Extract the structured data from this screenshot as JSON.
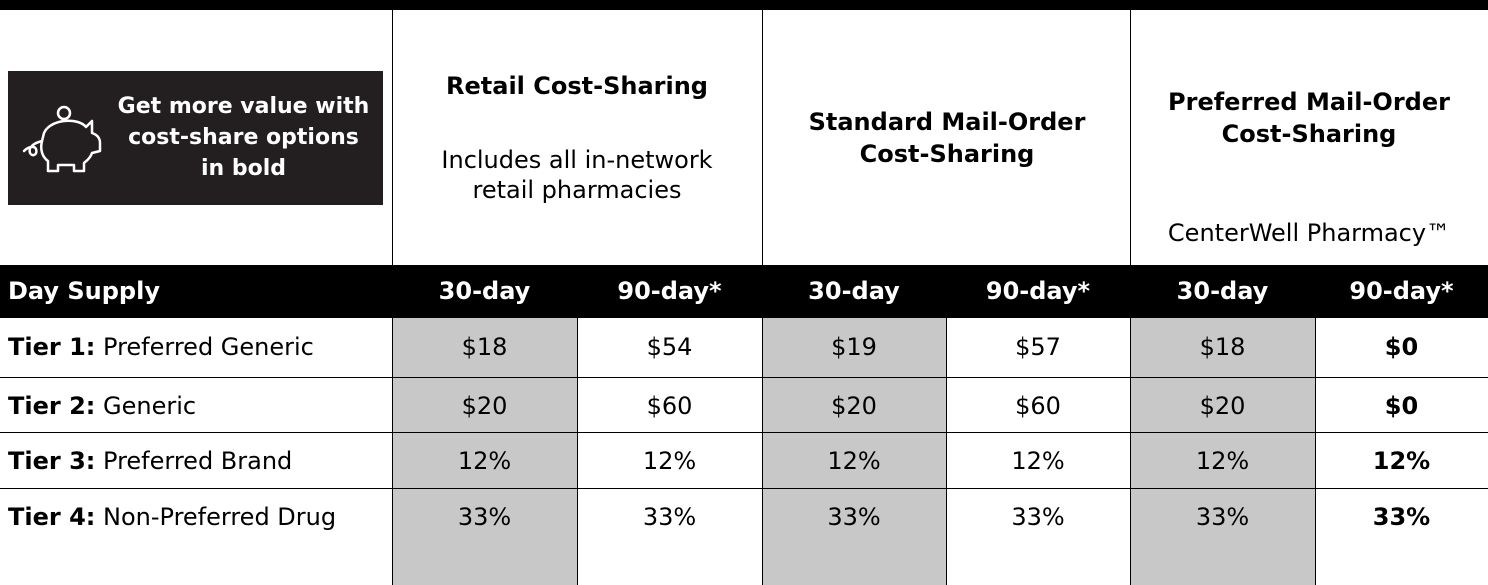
{
  "badge": {
    "text": "Get more value with cost-share options in bold"
  },
  "columns": [
    {
      "title": "Retail Cost-Sharing",
      "subtitle": "Includes all in-network retail pharmacies"
    },
    {
      "title": "Standard Mail-Order Cost-Sharing"
    },
    {
      "title": "Preferred Mail-Order Cost-Sharing",
      "subtitle": "CenterWell Pharmacy™"
    }
  ],
  "table": {
    "header": [
      "Day Supply",
      "30-day",
      "90-day*",
      "30-day",
      "90-day*",
      "30-day",
      "90-day*"
    ],
    "rows": [
      {
        "tier": "Tier 1:",
        "name": "Preferred Generic",
        "cells": [
          "$18",
          "$54",
          "$19",
          "$57",
          "$18",
          "$0"
        ]
      },
      {
        "tier": "Tier 2:",
        "name": "Generic",
        "cells": [
          "$20",
          "$60",
          "$20",
          "$60",
          "$20",
          "$0"
        ]
      },
      {
        "tier": "Tier 3:",
        "name": "Preferred Brand",
        "cells": [
          "12%",
          "12%",
          "12%",
          "12%",
          "12%",
          "12%"
        ]
      },
      {
        "tier": "Tier 4:",
        "name": "Non-Preferred Drug",
        "cells": [
          "33%",
          "33%",
          "33%",
          "33%",
          "33%",
          "33%"
        ]
      }
    ]
  }
}
